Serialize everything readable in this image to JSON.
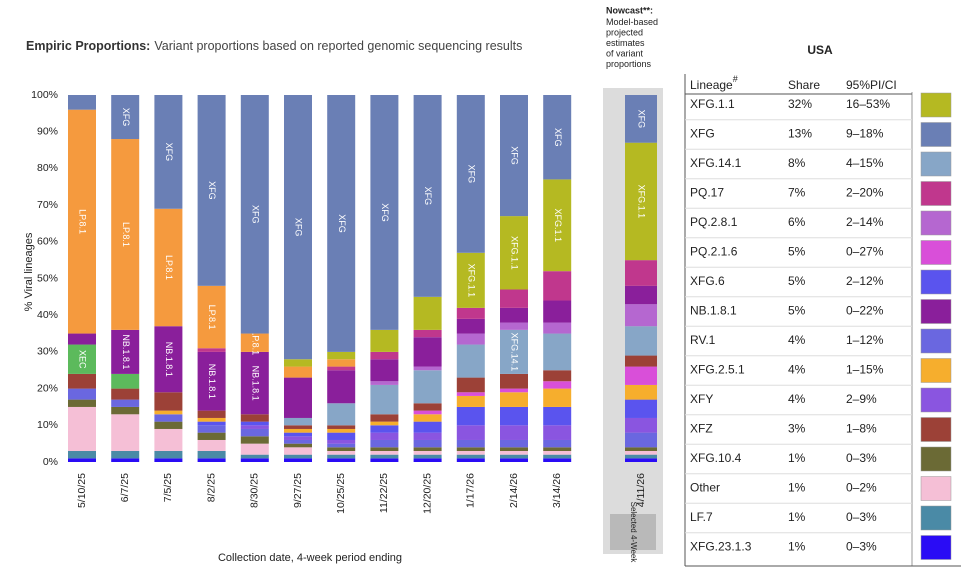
{
  "chart_data": {
    "type": "stacked_bar",
    "title_bold": "Empiric Proportions:",
    "title": "Variant proportions based on reported genomic sequencing results",
    "y_label": "% Viral lineages",
    "x_label": "Collection date, 4-week period ending",
    "nowcast": {
      "title": "Nowcast**:",
      "description": "Model-based projected estimates of variant proportions",
      "footer": "Selected 4-Week"
    },
    "categories": [
      "5/10/25",
      "6/7/25",
      "7/5/25",
      "8/2/25",
      "8/30/25",
      "9/27/25",
      "10/25/25",
      "11/22/25",
      "12/20/25",
      "1/17/26",
      "2/14/26",
      "3/14/26",
      "4/11/26"
    ],
    "ylim": [
      0,
      100
    ],
    "yticks": [
      {
        "value": 0,
        "label": "0%"
      },
      {
        "value": 10,
        "label": "10%"
      },
      {
        "value": 20,
        "label": "20%"
      },
      {
        "value": 30,
        "label": "30%"
      },
      {
        "value": 40,
        "label": "40%"
      },
      {
        "value": 50,
        "label": "50%"
      },
      {
        "value": 60,
        "label": "60%"
      },
      {
        "value": 70,
        "label": "70%"
      },
      {
        "value": 80,
        "label": "80%"
      },
      {
        "value": 90,
        "label": "90%"
      },
      {
        "value": 100,
        "label": "100%"
      }
    ],
    "series": [
      {
        "name": "XFG.23.1.3",
        "color": "#2a0cf5",
        "values": [
          1,
          1,
          1,
          1,
          1,
          1,
          1,
          1,
          1,
          1,
          1,
          1,
          1
        ]
      },
      {
        "name": "LF.7",
        "color": "#4a8aa6",
        "values": [
          2,
          2,
          2,
          2,
          1,
          1,
          1,
          1,
          1,
          1,
          1,
          1,
          1
        ]
      },
      {
        "name": "Other",
        "color": "#f5bfd6",
        "values": [
          12,
          10,
          6,
          3,
          3,
          2,
          1,
          1,
          1,
          1,
          1,
          1,
          1
        ]
      },
      {
        "name": "XFG.10.4",
        "color": "#6b6a35",
        "values": [
          2,
          2,
          2,
          2,
          2,
          1,
          1,
          1,
          1,
          1,
          1,
          1,
          1
        ]
      },
      {
        "name": "RV.1",
        "color": "#6a67e0",
        "values": [
          3,
          2,
          2,
          2,
          2,
          1,
          1,
          2,
          2,
          2,
          2,
          2,
          4
        ]
      },
      {
        "name": "XFY",
        "color": "#8a55e0",
        "values": [
          0,
          0,
          0,
          0,
          1,
          1,
          1,
          2,
          2,
          4,
          4,
          4,
          4
        ]
      },
      {
        "name": "XFG.6",
        "color": "#5a54ee",
        "values": [
          0,
          0,
          0,
          1,
          1,
          1,
          2,
          2,
          3,
          5,
          5,
          5,
          5
        ]
      },
      {
        "name": "XFG.2.5.1",
        "color": "#f6ae2d",
        "values": [
          0,
          0,
          1,
          1,
          0,
          1,
          1,
          1,
          2,
          3,
          4,
          5,
          4
        ]
      },
      {
        "name": "PQ.2.1.6",
        "color": "#d94fd9",
        "values": [
          0,
          0,
          0,
          0,
          0,
          0,
          0,
          0,
          1,
          1,
          1,
          2,
          5
        ]
      },
      {
        "name": "XFZ",
        "color": "#9c4137",
        "values": [
          4,
          3,
          5,
          2,
          2,
          1,
          1,
          2,
          2,
          4,
          4,
          3,
          3
        ]
      },
      {
        "name": "XFG.14.1",
        "color": "#87a6c7",
        "values": [
          0,
          0,
          0,
          0,
          0,
          2,
          6,
          8,
          9,
          9,
          12,
          10,
          8
        ]
      },
      {
        "name": "PQ.2.8.1",
        "color": "#b567d0",
        "values": [
          0,
          0,
          0,
          0,
          0,
          0,
          0,
          1,
          1,
          3,
          2,
          3,
          6
        ]
      },
      {
        "name": "XEC",
        "color": "#5cba5c",
        "values": [
          8,
          4,
          0,
          0,
          0,
          0,
          0,
          0,
          0,
          0,
          0,
          0,
          0
        ]
      },
      {
        "name": "NB.1.8.1",
        "color": "#8a1f9b",
        "values": [
          3,
          12,
          18,
          16,
          17,
          11,
          9,
          6,
          8,
          4,
          4,
          6,
          5
        ]
      },
      {
        "name": "PQ.17",
        "color": "#c0378d",
        "values": [
          0,
          0,
          0,
          1,
          0,
          0,
          1,
          2,
          2,
          3,
          5,
          8,
          7
        ]
      },
      {
        "name": "LP.8.1",
        "color": "#f59a3e",
        "values": [
          61,
          52,
          32,
          17,
          5,
          3,
          2,
          0,
          0,
          0,
          0,
          0,
          0
        ]
      },
      {
        "name": "XFG.1.1",
        "color": "#b5b922",
        "values": [
          0,
          0,
          0,
          0,
          0,
          2,
          2,
          6,
          9,
          15,
          20,
          25,
          32
        ]
      },
      {
        "name": "XFG",
        "color": "#6a7fb5",
        "values": [
          4,
          12,
          31,
          52,
          65,
          72,
          70,
          64,
          55,
          43,
          33,
          23,
          13
        ]
      }
    ],
    "label_at": {
      "XEC": [
        0
      ],
      "NB.1.8.1": [
        1,
        2,
        3,
        4
      ],
      "LP.8.1": [
        0,
        1,
        2,
        3,
        4
      ],
      "XFG.1.1": [
        9,
        10,
        11,
        12
      ],
      "XFG.14.1": [
        10
      ],
      "XFG": [
        1,
        2,
        3,
        4,
        5,
        6,
        7,
        8,
        9,
        10,
        11,
        12
      ]
    }
  },
  "lineage_table": {
    "title": "USA",
    "header": {
      "lineage": "Lineage",
      "mark": "#",
      "share": "Share",
      "ci": "95%PI/CI"
    },
    "rows": [
      {
        "lineage": "XFG.1.1",
        "share": "32%",
        "ci": "16–53%",
        "color": "#b5b922"
      },
      {
        "lineage": "XFG",
        "share": "13%",
        "ci": "9–18%",
        "color": "#6a7fb5"
      },
      {
        "lineage": "XFG.14.1",
        "share": "8%",
        "ci": "4–15%",
        "color": "#87a6c7"
      },
      {
        "lineage": "PQ.17",
        "share": "7%",
        "ci": "2–20%",
        "color": "#c0378d"
      },
      {
        "lineage": "PQ.2.8.1",
        "share": "6%",
        "ci": "2–14%",
        "color": "#b567d0"
      },
      {
        "lineage": "PQ.2.1.6",
        "share": "5%",
        "ci": "0–27%",
        "color": "#d94fd9"
      },
      {
        "lineage": "XFG.6",
        "share": "5%",
        "ci": "2–12%",
        "color": "#5a54ee"
      },
      {
        "lineage": "NB.1.8.1",
        "share": "5%",
        "ci": "0–22%",
        "color": "#8a1f9b"
      },
      {
        "lineage": "RV.1",
        "share": "4%",
        "ci": "1–12%",
        "color": "#6a67e0"
      },
      {
        "lineage": "XFG.2.5.1",
        "share": "4%",
        "ci": "1–15%",
        "color": "#f6ae2d"
      },
      {
        "lineage": "XFY",
        "share": "4%",
        "ci": "2–9%",
        "color": "#8a55e0"
      },
      {
        "lineage": "XFZ",
        "share": "3%",
        "ci": "1–8%",
        "color": "#9c4137"
      },
      {
        "lineage": "XFG.10.4",
        "share": "1%",
        "ci": "0–3%",
        "color": "#6b6a35"
      },
      {
        "lineage": "Other",
        "share": "1%",
        "ci": "0–2%",
        "color": "#f5bfd6"
      },
      {
        "lineage": "LF.7",
        "share": "1%",
        "ci": "0–3%",
        "color": "#4a8aa6"
      },
      {
        "lineage": "XFG.23.1.3",
        "share": "1%",
        "ci": "0–3%",
        "color": "#2a0cf5"
      }
    ]
  }
}
